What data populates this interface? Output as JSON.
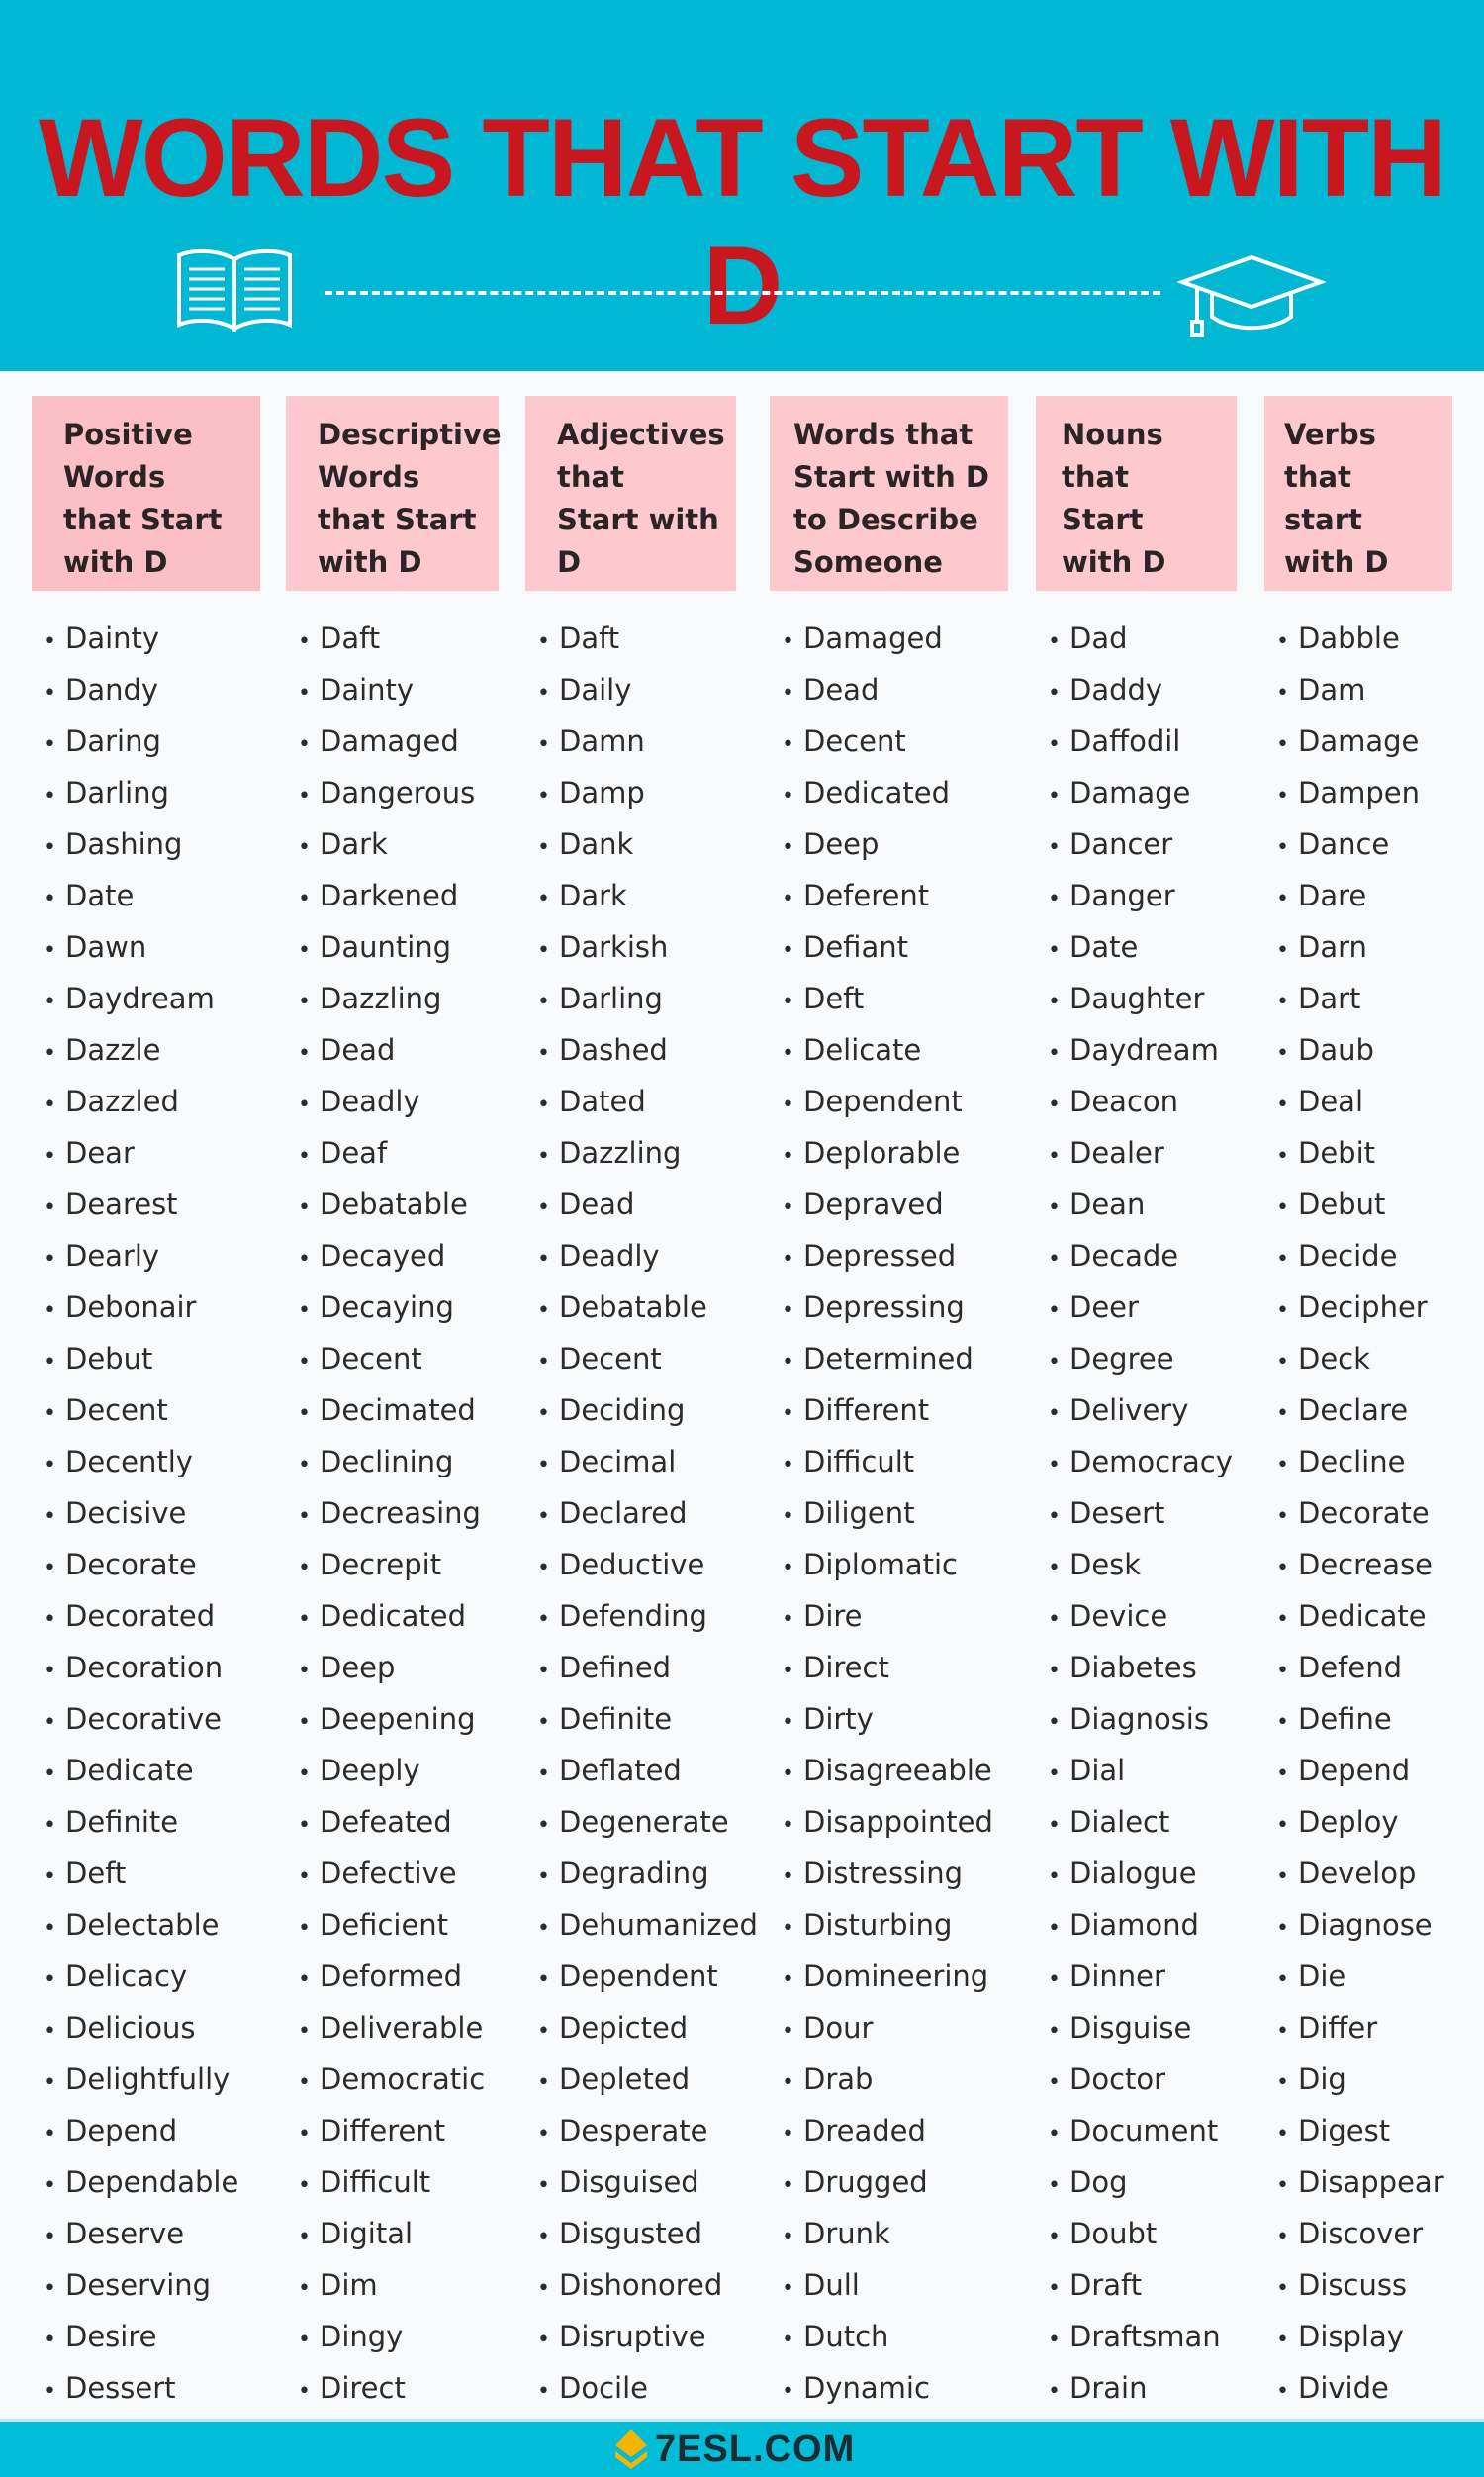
{
  "title": "WORDS THAT START WITH D",
  "footer_logo": "7ESL.COM",
  "icons": [
    "open-book-icon",
    "graduation-cap-icon"
  ],
  "colors": {
    "header_bg": "#00b7d4",
    "title": "#c8171e",
    "column_header_bg": "#fdc9cf",
    "text": "#2b2b2b"
  },
  "columns": [
    {
      "heading": [
        "Positive",
        "Words",
        "that Start",
        "with D"
      ],
      "words": [
        "Dainty",
        "Dandy",
        "Daring",
        "Darling",
        "Dashing",
        "Date",
        "Dawn",
        "Daydream",
        "Dazzle",
        "Dazzled",
        "Dear",
        "Dearest",
        "Dearly",
        "Debonair",
        "Debut",
        "Decent",
        "Decently",
        "Decisive",
        "Decorate",
        "Decorated",
        "Decoration",
        "Decorative",
        "Dedicate",
        "Definite",
        "Deft",
        "Delectable",
        "Delicacy",
        "Delicious",
        "Delightfully",
        "Depend",
        "Dependable",
        "Deserve",
        "Deserving",
        "Desire",
        "Dessert"
      ]
    },
    {
      "heading": [
        "Descriptive",
        "Words",
        "that Start",
        "with D"
      ],
      "words": [
        "Daft",
        "Dainty",
        "Damaged",
        "Dangerous",
        "Dark",
        "Darkened",
        "Daunting",
        "Dazzling",
        "Dead",
        "Deadly",
        "Deaf",
        "Debatable",
        "Decayed",
        "Decaying",
        "Decent",
        "Decimated",
        "Declining",
        "Decreasing",
        "Decrepit",
        "Dedicated",
        "Deep",
        "Deepening",
        "Deeply",
        "Defeated",
        "Defective",
        "Deficient",
        "Deformed",
        "Deliverable",
        "Democratic",
        "Different",
        "Difficult",
        "Digital",
        "Dim",
        "Dingy",
        "Direct"
      ]
    },
    {
      "heading": [
        "Adjectives",
        "that",
        "Start with",
        "D"
      ],
      "words": [
        "Daft",
        "Daily",
        "Damn",
        "Damp",
        "Dank",
        "Dark",
        "Darkish",
        "Darling",
        "Dashed",
        "Dated",
        "Dazzling",
        "Dead",
        "Deadly",
        "Debatable",
        "Decent",
        "Deciding",
        "Decimal",
        "Declared",
        "Deductive",
        "Defending",
        "Defined",
        "Definite",
        "Deflated",
        "Degenerate",
        "Degrading",
        "Dehumanized",
        "Dependent",
        "Depicted",
        "Depleted",
        "Desperate",
        "Disguised",
        "Disgusted",
        "Dishonored",
        "Disruptive",
        "Docile"
      ]
    },
    {
      "heading": [
        "Words that",
        "Start with D",
        "to Describe",
        "Someone"
      ],
      "words": [
        "Damaged",
        "Dead",
        "Decent",
        "Dedicated",
        "Deep",
        "Deferent",
        "Defiant",
        "Deft",
        "Delicate",
        "Dependent",
        "Deplorable",
        "Depraved",
        "Depressed",
        "Depressing",
        "Determined",
        "Different",
        "Difficult",
        "Diligent",
        "Diplomatic",
        "Dire",
        "Direct",
        "Dirty",
        "Disagreeable",
        "Disappointed",
        "Distressing",
        "Disturbing",
        "Domineering",
        "Dour",
        "Drab",
        "Dreaded",
        "Drugged",
        "Drunk",
        "Dull",
        "Dutch",
        "Dynamic"
      ]
    },
    {
      "heading": [
        "Nouns",
        "that",
        "Start",
        "with D"
      ],
      "words": [
        "Dad",
        "Daddy",
        "Daffodil",
        "Damage",
        "Dancer",
        "Danger",
        "Date",
        "Daughter",
        "Daydream",
        "Deacon",
        "Dealer",
        "Dean",
        "Decade",
        "Deer",
        "Degree",
        "Delivery",
        "Democracy",
        "Desert",
        "Desk",
        "Device",
        "Diabetes",
        "Diagnosis",
        "Dial",
        "Dialect",
        "Dialogue",
        "Diamond",
        "Dinner",
        "Disguise",
        "Doctor",
        "Document",
        "Dog",
        "Doubt",
        "Draft",
        "Draftsman",
        "Drain"
      ]
    },
    {
      "heading": [
        "Verbs",
        "that",
        "start",
        "with D"
      ],
      "words": [
        "Dabble",
        "Dam",
        "Damage",
        "Dampen",
        "Dance",
        "Dare",
        "Darn",
        "Dart",
        "Daub",
        "Deal",
        "Debit",
        "Debut",
        "Decide",
        "Decipher",
        "Deck",
        "Declare",
        "Decline",
        "Decorate",
        "Decrease",
        "Dedicate",
        "Defend",
        "Define",
        "Depend",
        "Deploy",
        "Develop",
        "Diagnose",
        "Die",
        "Differ",
        "Dig",
        "Digest",
        "Disappear",
        "Discover",
        "Discuss",
        "Display",
        "Divide"
      ]
    }
  ]
}
